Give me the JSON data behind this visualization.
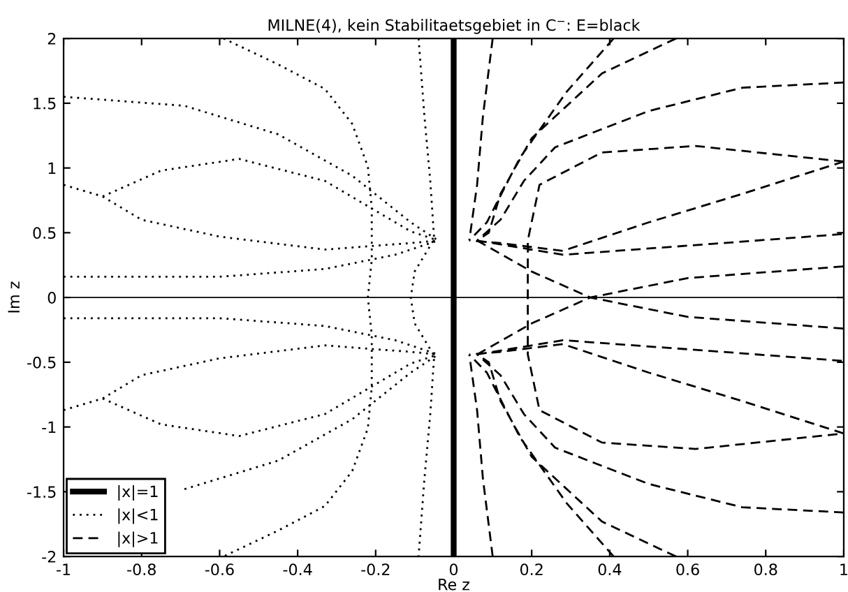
{
  "chart_data": {
    "type": "line",
    "title": "MILNE(4), kein Stabilitaetsgebiet in C$^{−}$: E=black",
    "xlabel": "Re z",
    "ylabel": "Im z",
    "xlim": [
      -1,
      1
    ],
    "ylim": [
      -2,
      2
    ],
    "xticks": [
      -1,
      -0.8,
      -0.6,
      -0.4,
      -0.2,
      0,
      0.2,
      0.4,
      0.6,
      0.8,
      1
    ],
    "yticks": [
      -2,
      -1.5,
      -1,
      -0.5,
      0,
      0.5,
      1,
      1.5,
      2
    ],
    "grid": false,
    "legend": "bottom left",
    "marker": "none",
    "ref_lines": [
      {
        "axis": "y",
        "value": 0,
        "color": "#000000",
        "line_style": "solid"
      }
    ],
    "series": [
      {
        "name": "|x|=1",
        "color": "#000000",
        "line_style": "solid",
        "x": [
          0,
          0
        ],
        "values": [
          -2,
          2
        ]
      },
      {
        "name": "|x|<1",
        "color": "#000000",
        "line_style": "dotted",
        "x": [
          -0.59,
          -0.45,
          -0.33,
          -0.26,
          -0.22,
          -0.21,
          -0.21,
          -0.22,
          -0.21,
          -0.21,
          -0.22,
          -0.26,
          -0.33,
          -0.45,
          -0.59,
          null,
          -0.09,
          -0.075,
          -0.06,
          -0.05,
          -0.1,
          -0.11,
          -0.1,
          -0.05,
          -0.06,
          -0.075,
          -0.09,
          null,
          -1,
          -0.69,
          -0.45,
          -0.26,
          -0.11,
          -0.04,
          null,
          -0.69,
          -0.45,
          -0.26,
          -0.11,
          -0.04,
          null,
          -1,
          -0.9,
          -0.8,
          -0.6,
          -0.33,
          -0.11,
          -0.04,
          null,
          -0.9,
          -0.75,
          -0.55,
          -0.33,
          -0.11,
          -0.04,
          null,
          -1,
          -0.9,
          -0.8,
          -0.6,
          -0.33,
          -0.11,
          -0.04,
          null,
          -0.9,
          -0.75,
          -0.55,
          -0.33,
          -0.11,
          -0.04,
          null,
          -1,
          -0.6,
          -0.33,
          -0.15,
          -0.04,
          null,
          -1,
          -0.6,
          -0.33,
          -0.15,
          -0.04
        ],
        "values": [
          2,
          1.8,
          1.61,
          1.34,
          1.01,
          0.69,
          0.29,
          0,
          -0.29,
          -0.69,
          -1.01,
          -1.34,
          -1.61,
          -1.8,
          -2,
          null,
          2,
          1.4,
          0.9,
          0.45,
          0.2,
          0,
          -0.2,
          -0.45,
          -0.9,
          -1.4,
          -2,
          null,
          1.55,
          1.48,
          1.26,
          0.94,
          0.58,
          0.44,
          null,
          -1.48,
          -1.26,
          -0.94,
          -0.58,
          -0.44,
          null,
          0.87,
          0.78,
          0.6,
          0.47,
          0.37,
          0.42,
          0.44,
          null,
          0.78,
          0.98,
          1.07,
          0.9,
          0.51,
          0.44,
          null,
          -0.87,
          -0.78,
          -0.6,
          -0.47,
          -0.37,
          -0.42,
          -0.44,
          null,
          -0.78,
          -0.98,
          -1.07,
          -0.9,
          -0.51,
          -0.44,
          null,
          0.16,
          0.16,
          0.22,
          0.33,
          0.44,
          null,
          -0.16,
          -0.16,
          -0.22,
          -0.33,
          -0.44
        ]
      },
      {
        "name": "|x|>1",
        "color": "#000000",
        "line_style": "dashed",
        "x": [
          0.1,
          0.075,
          0.06,
          0.04,
          null,
          0.1,
          0.075,
          0.06,
          0.04,
          null,
          0.41,
          0.29,
          0.17,
          0.085,
          0.04,
          null,
          0.41,
          0.29,
          0.17,
          0.085,
          0.04,
          null,
          0.57,
          0.38,
          0.2,
          0.12,
          0.09,
          0.06,
          null,
          0.57,
          0.38,
          0.2,
          0.12,
          0.09,
          0.06,
          null,
          1,
          0.74,
          0.5,
          0.26,
          0.18,
          0.12,
          0.06,
          null,
          1,
          0.74,
          0.5,
          0.26,
          0.18,
          0.12,
          0.06,
          null,
          1,
          0.62,
          0.38,
          0.22,
          0.19,
          0.19,
          0.19,
          0.22,
          0.38,
          0.62,
          1,
          null,
          1,
          0.74,
          0.5,
          0.28,
          0.12,
          0.04,
          null,
          1,
          0.74,
          0.5,
          0.28,
          0.12,
          0.04,
          null,
          0.06,
          0.28,
          0.6,
          1,
          null,
          0.06,
          0.28,
          0.6,
          1,
          null,
          0.06,
          0.2,
          0.35,
          0.6,
          1,
          null,
          0.06,
          0.2,
          0.35,
          0.6,
          1
        ],
        "values": [
          2,
          1.4,
          0.87,
          0.44,
          null,
          -2,
          -1.4,
          -0.87,
          -0.44,
          null,
          2,
          1.59,
          1.08,
          0.58,
          0.44,
          null,
          -2,
          -1.59,
          -1.08,
          -0.58,
          -0.44,
          null,
          2,
          1.73,
          1.23,
          0.8,
          0.5,
          0.44,
          null,
          -2,
          -1.73,
          -1.23,
          -0.8,
          -0.5,
          -0.44,
          null,
          1.66,
          1.62,
          1.44,
          1.16,
          0.9,
          0.6,
          0.44,
          null,
          -1.66,
          -1.62,
          -1.44,
          -1.16,
          -0.9,
          -0.6,
          -0.44,
          null,
          1.05,
          1.17,
          1.12,
          0.87,
          0.44,
          0,
          -0.44,
          -0.87,
          -1.12,
          -1.17,
          -1.05,
          null,
          1.05,
          0.8,
          0.58,
          0.36,
          0.42,
          0.44,
          null,
          -1.05,
          -0.8,
          -0.58,
          -0.36,
          -0.42,
          -0.44,
          null,
          0.44,
          0.33,
          0.4,
          0.49,
          null,
          -0.44,
          -0.33,
          -0.4,
          -0.49,
          null,
          0.44,
          0.2,
          0,
          -0.15,
          -0.24,
          null,
          -0.44,
          -0.2,
          0,
          0.15,
          0.24
        ]
      }
    ]
  }
}
